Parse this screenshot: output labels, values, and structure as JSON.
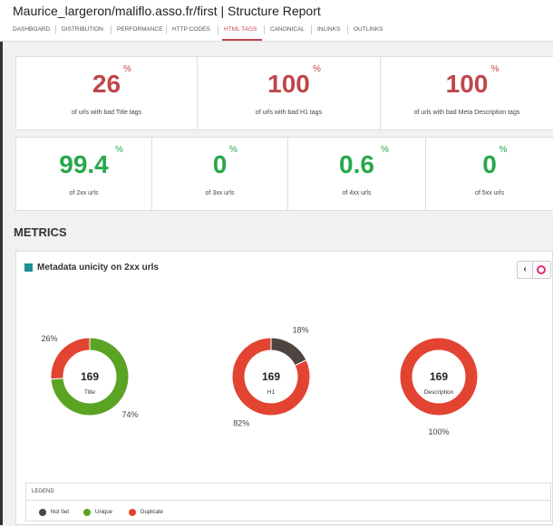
{
  "header": {
    "title": "Maurice_largeron/maliflo.asso.fr/first | Structure Report"
  },
  "nav": {
    "items": [
      "DASHBOARD",
      "DISTRIBUTION",
      "PERFORMANCE",
      "HTTP CODES",
      "HTML TAGS",
      "CANONICAL",
      "INLINKS",
      "OUTLINKS"
    ],
    "active": 4
  },
  "kpis_row1": [
    {
      "value": 26,
      "unit": "%",
      "label": "of urls with bad Title tags",
      "color": "#c0464b"
    },
    {
      "value": 100,
      "unit": "%",
      "label": "of urls with bad H1 tags",
      "color": "#c0464b"
    },
    {
      "value": 100,
      "unit": "%",
      "label": "of urls with bad Meta Description tags",
      "color": "#c0464b"
    }
  ],
  "kpis_row2": [
    {
      "value": 99.4,
      "unit": "%",
      "label": "of 2xx urls",
      "color": "#27a84a"
    },
    {
      "value": 0,
      "unit": "%",
      "label": "of 3xx urls",
      "color": "#27a84a"
    },
    {
      "value": 0.6,
      "unit": "%",
      "label": "of 4xx urls",
      "color": "#27a84a"
    },
    {
      "value": 0,
      "unit": "%",
      "label": "of 5xx urls",
      "color": "#27a84a"
    }
  ],
  "section_title": "METRICS",
  "panel": {
    "title": "Metadata unicity on 2xx urls",
    "charts": [
      {
        "type": "donut",
        "total": "169",
        "name": "Title",
        "series": [
          {
            "name": "Unique",
            "color": "#5aa323",
            "value": 74,
            "value_label": "74%"
          },
          {
            "name": "Duplicate",
            "color": "#e24431",
            "value": 26,
            "value_label": "26%"
          }
        ]
      },
      {
        "type": "donut",
        "total": "169",
        "name": "H1",
        "series": [
          {
            "name": "Not Set",
            "color": "#4e4540",
            "value": 18,
            "value_label": "18%"
          },
          {
            "name": "Duplicate",
            "color": "#e24431",
            "value": 82,
            "value_label": "82%"
          }
        ]
      },
      {
        "type": "donut",
        "total": "169",
        "name": "Description",
        "series": [
          {
            "name": "Duplicate",
            "color": "#e24431",
            "value": 100,
            "value_label": "100%"
          }
        ]
      }
    ],
    "legend": {
      "title": "LEGEND",
      "items": [
        {
          "name": "Not Set",
          "color": "#4e4540"
        },
        {
          "name": "Unique",
          "color": "#5aa323"
        },
        {
          "name": "Duplicate",
          "color": "#e24431"
        }
      ]
    }
  }
}
